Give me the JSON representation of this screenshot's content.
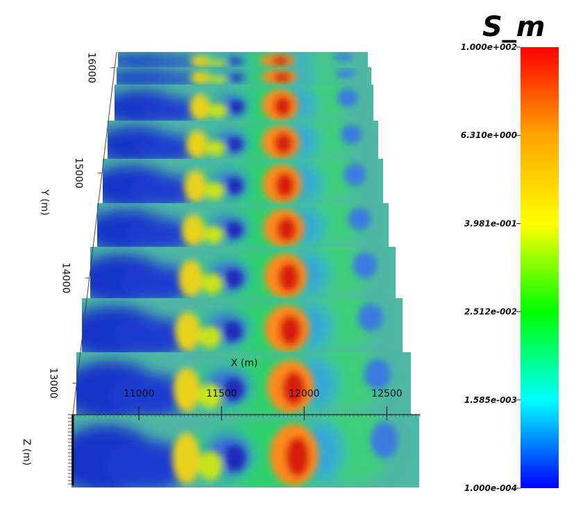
{
  "chart_data": {
    "type": "heatmap",
    "title": "",
    "xlabel": "X (m)",
    "ylabel": "Y (m)",
    "zlabel": "Z (m)",
    "x_ticks": [
      "11000",
      "11500",
      "12000",
      "12500"
    ],
    "y_ticks": [
      "13000",
      "14000",
      "15000",
      "16000"
    ],
    "x_range": [
      10600,
      12700
    ],
    "y_range": [
      12700,
      16150
    ],
    "colorbar": {
      "title": "S_m",
      "scale": "log",
      "range": [
        0.0001,
        100
      ],
      "tick_labels": [
        "1.000e+002",
        "6.310e+000",
        "3.981e-001",
        "2.512e-002",
        "1.585e-003",
        "1.000e-004"
      ],
      "colors": [
        "#ff0000",
        "#ffa500",
        "#ffff00",
        "#00ff00",
        "#00ffff",
        "#0000ff"
      ]
    },
    "slices": {
      "count": 9,
      "y_positions": [
        16050,
        15900,
        15650,
        15100,
        14600,
        14050,
        13500,
        12950,
        12450
      ]
    }
  }
}
